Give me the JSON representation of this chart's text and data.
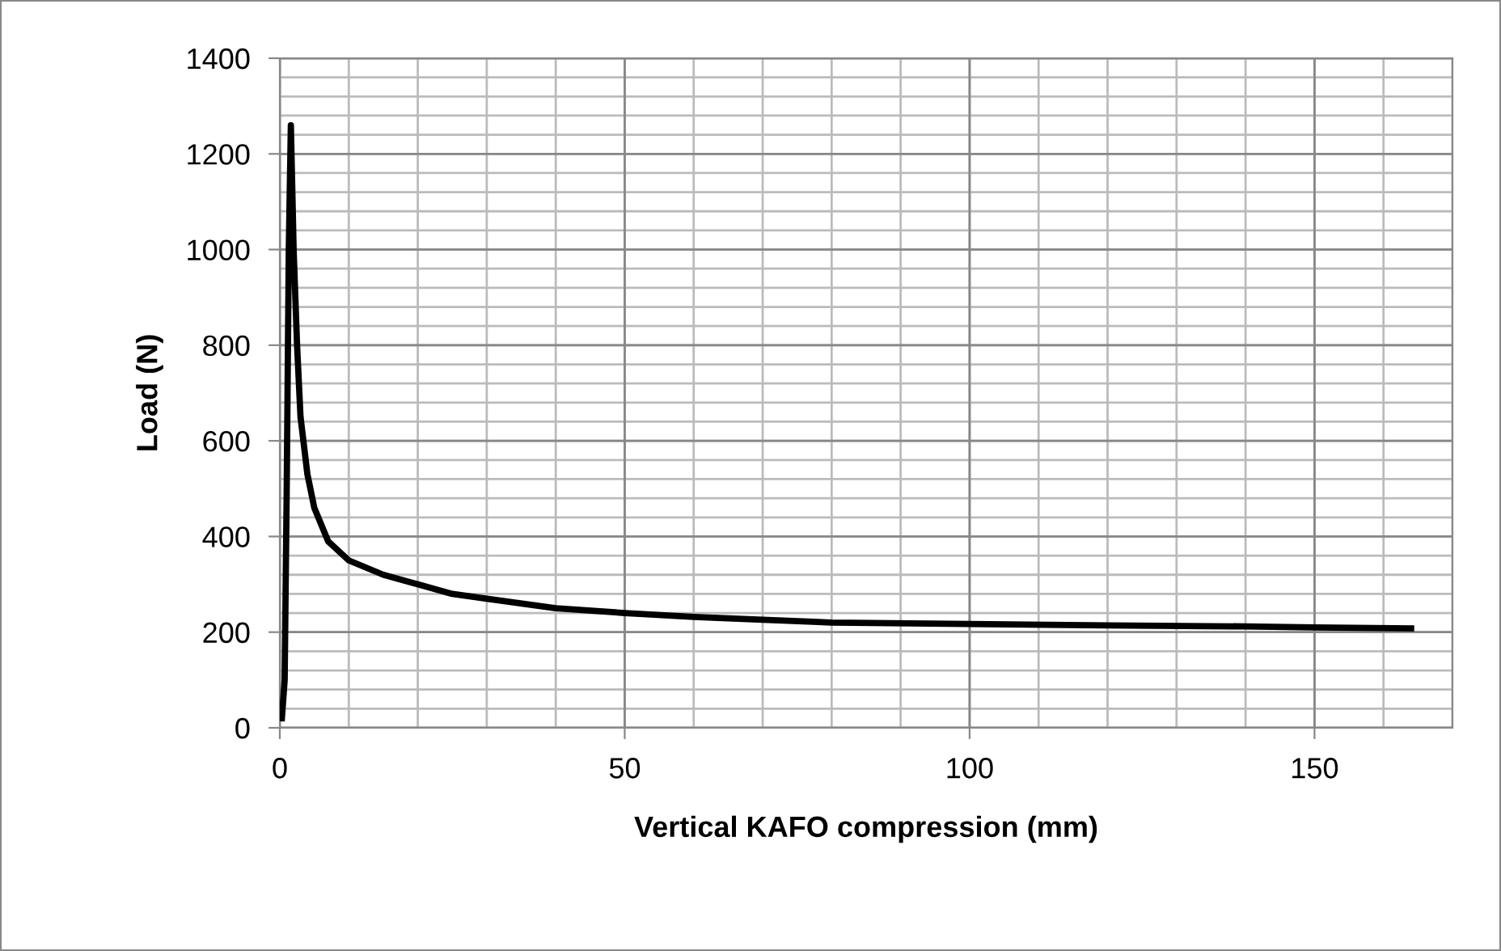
{
  "chart_data": {
    "type": "line",
    "xlabel": "Vertical KAFO compression (mm)",
    "ylabel": "Load (N)",
    "x": [
      0.3,
      0.7,
      1.0,
      1.3,
      1.6,
      2.0,
      2.5,
      3,
      4,
      5,
      7,
      10,
      15,
      20,
      25,
      30,
      40,
      50,
      60,
      70,
      80,
      100,
      120,
      140,
      150,
      164
    ],
    "series": [
      {
        "color": "#000000",
        "values": [
          20,
          100,
          500,
          1000,
          1260,
          1000,
          800,
          650,
          530,
          460,
          390,
          350,
          320,
          300,
          280,
          270,
          250,
          240,
          232,
          226,
          220,
          217,
          214,
          212,
          210,
          208
        ]
      }
    ],
    "xlim": [
      0,
      170
    ],
    "xticks": [
      0,
      50,
      100,
      150
    ],
    "ylim": [
      0,
      1400
    ],
    "yticks": [
      0,
      200,
      400,
      600,
      800,
      1000,
      1200,
      1400
    ],
    "grid": true,
    "legend": false,
    "marker": "none",
    "line_style": "solid"
  }
}
